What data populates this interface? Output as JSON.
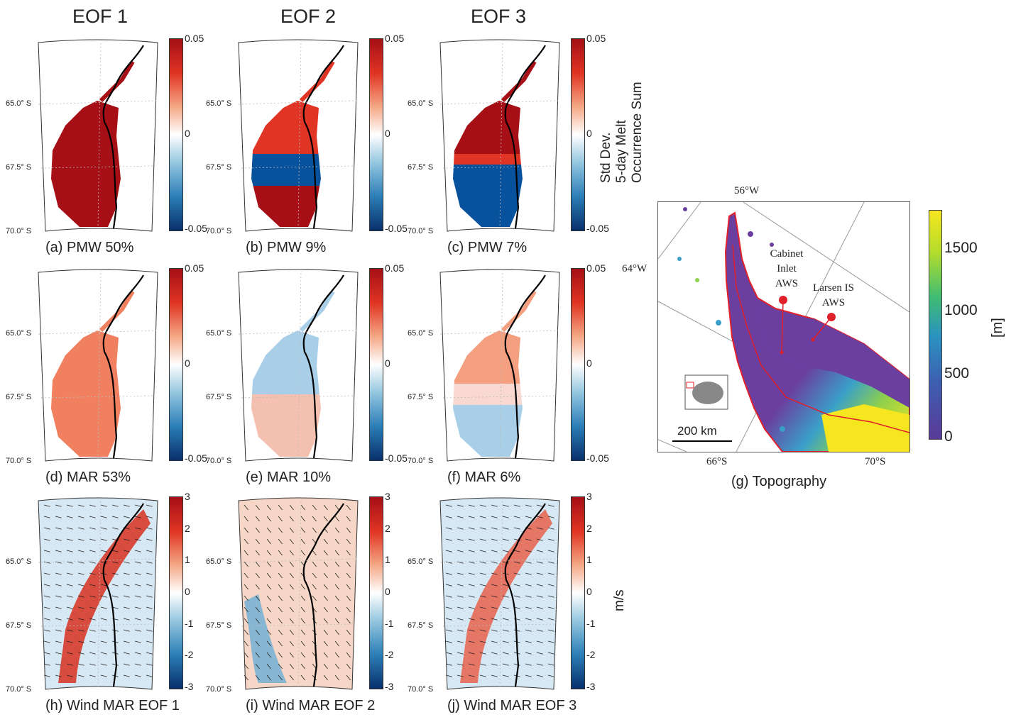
{
  "columns": [
    "EOF 1",
    "EOF 2",
    "EOF 3"
  ],
  "colorbar_melt": {
    "ticks": [
      "0.05",
      "0",
      "-0.05"
    ],
    "label_lines": [
      "Std Dev.",
      "5-day Melt",
      "Occurrence Sum"
    ]
  },
  "colorbar_wind": {
    "ticks": [
      "3",
      "2",
      "1",
      "0",
      "-1",
      "-2",
      "-3"
    ],
    "label": "m/s"
  },
  "lat_labels": [
    "65.0° S",
    "67.5° S",
    "70.0° S"
  ],
  "panels": [
    {
      "caption": "(a) PMW 50%",
      "pattern": "uniform_red"
    },
    {
      "caption": "(b) PMW 9%",
      "pattern": "dipole_pmw"
    },
    {
      "caption": "(c) PMW 7%",
      "pattern": "tripole_pmw"
    },
    {
      "caption": "(d) MAR 53%",
      "pattern": "uniform_orange"
    },
    {
      "caption": "(e) MAR 10%",
      "pattern": "dipole_mar"
    },
    {
      "caption": "(f) MAR 6%",
      "pattern": "tripole_mar"
    },
    {
      "caption": "(h) Wind MAR EOF 1",
      "pattern": "wind1"
    },
    {
      "caption": "(i) Wind MAR EOF 2",
      "pattern": "wind2"
    },
    {
      "caption": "(j) Wind MAR EOF 3",
      "pattern": "wind3"
    }
  ],
  "topography": {
    "caption": "(g) Topography",
    "lon_top": "56°W",
    "lon_left": "64°W",
    "lat_bottom_left": "66°S",
    "lat_bottom_right": "70°S",
    "station_1": [
      "Cabinet",
      "Inlet",
      "AWS"
    ],
    "station_2": [
      "Larsen IS",
      "AWS"
    ],
    "scale": "200 km",
    "colorbar_ticks": [
      "1500",
      "1000",
      "500",
      "0"
    ],
    "colorbar_label": "[m]"
  },
  "colors": {
    "red_dark": "#a50f15",
    "red": "#e03524",
    "orange": "#f08060",
    "blue_dark": "#08519c",
    "blue_light": "#a9cfe8",
    "topo_purple": "#6a3fa0",
    "topo_yellow": "#f5e61f"
  }
}
